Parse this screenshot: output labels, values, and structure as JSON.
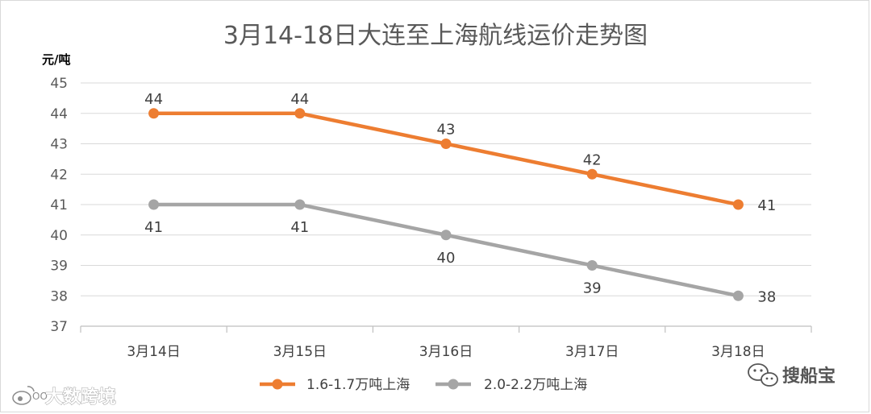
{
  "chart_data": {
    "type": "line",
    "title": "3月14-18日大连至上海航线运价走势图",
    "ylabel": "元/吨",
    "xlabel": "",
    "categories": [
      "3月14日",
      "3月15日",
      "3月16日",
      "3月17日",
      "3月18日"
    ],
    "ylim": [
      37,
      45
    ],
    "yticks": [
      37,
      38,
      39,
      40,
      41,
      42,
      43,
      44,
      45
    ],
    "grid": true,
    "legend_position": "bottom",
    "series": [
      {
        "name": "1.6-1.7万吨上海",
        "color": "#ed7d31",
        "values": [
          44,
          44,
          43,
          42,
          41
        ]
      },
      {
        "name": "2.0-2.2万吨上海",
        "color": "#a5a5a5",
        "values": [
          41,
          41,
          40,
          39,
          38
        ]
      }
    ]
  },
  "watermarks": {
    "left": "大数跨境",
    "right": "搜船宝",
    "left_icon": "weibo-logo-icon",
    "right_icon": "wechat-logo-icon"
  }
}
